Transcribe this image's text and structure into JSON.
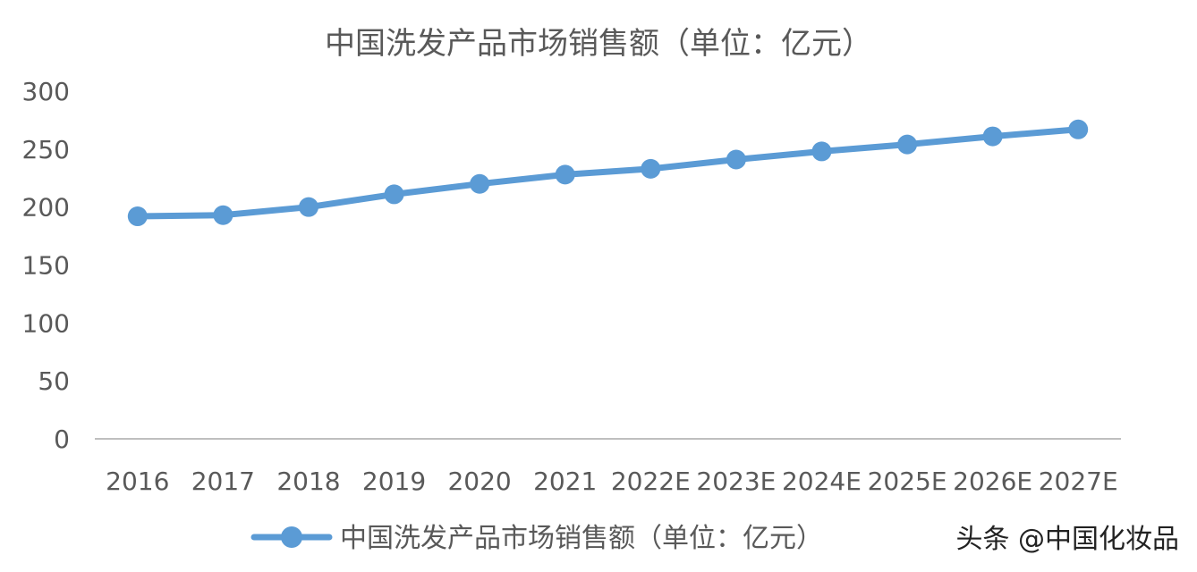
{
  "chart_data": {
    "type": "line",
    "title": "中国洗发产品市场销售额（单位：亿元）",
    "categories": [
      "2016",
      "2017",
      "2018",
      "2019",
      "2020",
      "2021",
      "2022E",
      "2023E",
      "2024E",
      "2025E",
      "2026E",
      "2027E"
    ],
    "series": [
      {
        "name": "中国洗发产品市场销售额（单位：亿元）",
        "values": [
          192,
          193,
          200,
          211,
          220,
          228,
          233,
          241,
          248,
          254,
          261,
          267
        ],
        "color": "#5B9BD5"
      }
    ],
    "yticks": [
      "0",
      "50",
      "100",
      "150",
      "200",
      "250",
      "300"
    ],
    "ylim": [
      0,
      300
    ],
    "grid": false,
    "legend": "bottom"
  },
  "watermark": "头条 @中国化妆品"
}
